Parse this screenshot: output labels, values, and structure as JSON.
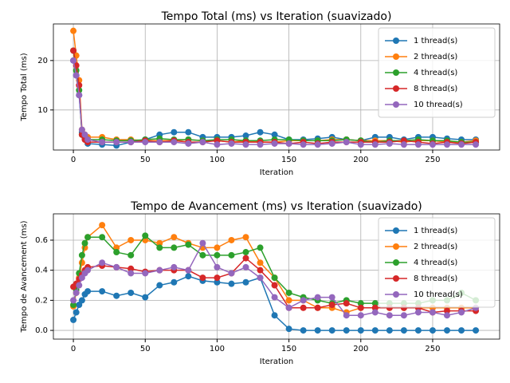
{
  "chart_data": [
    {
      "type": "line",
      "title": "Tempo Total (ms) vs Iteration (suavizado)",
      "xlabel": "Iteration",
      "ylabel": "Tempo Total (ms)",
      "x": [
        0,
        2,
        4,
        6,
        8,
        10,
        20,
        30,
        40,
        50,
        60,
        70,
        80,
        90,
        100,
        110,
        120,
        130,
        140,
        150,
        160,
        170,
        180,
        190,
        200,
        210,
        220,
        230,
        240,
        250,
        260,
        270,
        280
      ],
      "series": [
        {
          "name": "1 thread(s)",
          "color": "#1f77b4",
          "values": [
            20,
            17,
            13,
            5.5,
            4.2,
            3.2,
            3,
            2.8,
            3.5,
            4,
            5,
            5.5,
            5.5,
            4.5,
            4.5,
            4.5,
            4.8,
            5.5,
            5,
            4,
            4,
            4.2,
            4.5,
            4,
            3.8,
            4.5,
            4.5,
            4,
            4.5,
            4.5,
            4.2,
            4,
            4
          ]
        },
        {
          "name": "2 thread(s)",
          "color": "#ff7f0e",
          "values": [
            26,
            21,
            16,
            6,
            5,
            4.5,
            4.5,
            4,
            4,
            3.8,
            3.8,
            3.8,
            4,
            3.8,
            3.8,
            3.5,
            3.8,
            3.5,
            3.5,
            3.8,
            3.8,
            3.8,
            4,
            4,
            3.8,
            3.8,
            3.8,
            3.5,
            3.8,
            3.8,
            3.5,
            3.5,
            3.8
          ]
        },
        {
          "name": "4 thread(s)",
          "color": "#2ca02c",
          "values": [
            22,
            18,
            14,
            5,
            4.5,
            4,
            4,
            3.8,
            3.8,
            4,
            4.2,
            4,
            4,
            3.8,
            4,
            4,
            3.8,
            3.8,
            4,
            4,
            3.8,
            3.8,
            3.8,
            4,
            3.8,
            3.5,
            3.8,
            3.8,
            4,
            3.8,
            3.8,
            3.5,
            3.5
          ]
        },
        {
          "name": "8 thread(s)",
          "color": "#d62728",
          "values": [
            22,
            19,
            15,
            5,
            4,
            3.5,
            3.5,
            3.5,
            3.5,
            3.8,
            3.5,
            3.8,
            3.5,
            3.5,
            3.8,
            3.5,
            3.5,
            3.5,
            3.5,
            3.2,
            3.5,
            3.2,
            3.5,
            3.5,
            3.5,
            3.5,
            3.5,
            3.8,
            3.5,
            3.2,
            3.5,
            3.2,
            3.5
          ]
        },
        {
          "name": "10 thread(s)",
          "color": "#9467bd",
          "values": [
            20,
            17,
            13,
            6,
            5,
            4,
            3.5,
            3.5,
            3.5,
            3.5,
            3.5,
            3.5,
            3.2,
            3.5,
            3,
            3.2,
            3,
            3,
            3.2,
            3.2,
            3,
            3,
            3.2,
            3.5,
            3,
            3,
            3.2,
            3,
            3,
            3,
            3,
            3,
            3
          ]
        }
      ],
      "xlim": [
        -13.9,
        296.6
      ],
      "xticks": [
        0,
        50,
        100,
        150,
        200,
        250
      ],
      "ylim": [
        1.9,
        27.4
      ],
      "yticks": [
        10,
        20
      ],
      "grid": true,
      "legend": "upper right"
    },
    {
      "type": "line",
      "title": "Tempo de Avancement (ms) vs Iteration (suavizado)",
      "xlabel": "Iteration",
      "ylabel": "Tempo de Avancement (ms)",
      "x": [
        0,
        2,
        4,
        6,
        8,
        10,
        20,
        30,
        40,
        50,
        60,
        70,
        80,
        90,
        100,
        110,
        120,
        130,
        140,
        150,
        160,
        170,
        180,
        190,
        200,
        210,
        220,
        230,
        240,
        250,
        260,
        270,
        280
      ],
      "series": [
        {
          "name": "1 thread(s)",
          "color": "#1f77b4",
          "values": [
            0.07,
            0.12,
            0.17,
            0.2,
            0.24,
            0.26,
            0.26,
            0.23,
            0.25,
            0.22,
            0.3,
            0.32,
            0.36,
            0.33,
            0.32,
            0.31,
            0.32,
            0.35,
            0.1,
            0.01,
            0,
            0,
            0,
            0,
            0,
            0,
            0,
            0,
            0,
            0,
            0,
            0,
            0
          ]
        },
        {
          "name": "2 thread(s)",
          "color": "#ff7f0e",
          "values": [
            0.16,
            0.25,
            0.35,
            0.45,
            0.55,
            0.62,
            0.7,
            0.55,
            0.6,
            0.6,
            0.58,
            0.62,
            0.58,
            0.55,
            0.55,
            0.6,
            0.62,
            0.45,
            0.35,
            0.2,
            0.2,
            0.15,
            0.15,
            0.12,
            0.15,
            0.15,
            0.15,
            0.15,
            0.15,
            0.15,
            0.15,
            0.15,
            0.15
          ]
        },
        {
          "name": "4 thread(s)",
          "color": "#2ca02c",
          "values": [
            0.17,
            0.27,
            0.38,
            0.5,
            0.58,
            0.62,
            0.62,
            0.52,
            0.5,
            0.63,
            0.55,
            0.55,
            0.57,
            0.5,
            0.5,
            0.5,
            0.52,
            0.55,
            0.35,
            0.25,
            0.22,
            0.2,
            0.18,
            0.2,
            0.18,
            0.18,
            0.18,
            0.18,
            0.18,
            0.2,
            0.2,
            0.25,
            0.2
          ]
        },
        {
          "name": "8 thread(s)",
          "color": "#d62728",
          "values": [
            0.29,
            0.31,
            0.34,
            0.37,
            0.4,
            0.42,
            0.43,
            0.42,
            0.41,
            0.39,
            0.4,
            0.4,
            0.4,
            0.35,
            0.35,
            0.38,
            0.48,
            0.4,
            0.3,
            0.15,
            0.15,
            0.15,
            0.17,
            0.18,
            0.15,
            0.15,
            0.15,
            0.15,
            0.15,
            0.12,
            0.13,
            0.13,
            0.13
          ]
        },
        {
          "name": "10 thread(s)",
          "color": "#9467bd",
          "values": [
            0.2,
            0.25,
            0.3,
            0.35,
            0.38,
            0.4,
            0.45,
            0.42,
            0.38,
            0.38,
            0.4,
            0.42,
            0.4,
            0.58,
            0.42,
            0.38,
            0.42,
            0.35,
            0.22,
            0.15,
            0.2,
            0.22,
            0.22,
            0.1,
            0.1,
            0.12,
            0.1,
            0.1,
            0.12,
            0.12,
            0.1,
            0.12,
            0.15
          ]
        }
      ],
      "xlim": [
        -13.9,
        296.6
      ],
      "xticks": [
        0,
        50,
        100,
        150,
        200,
        250
      ],
      "ylim": [
        -0.058,
        0.775
      ],
      "yticks": [
        {
          "value": 0,
          "label": "0.0"
        },
        0.2,
        0.4,
        0.6
      ],
      "grid": true,
      "legend": "upper right"
    }
  ]
}
